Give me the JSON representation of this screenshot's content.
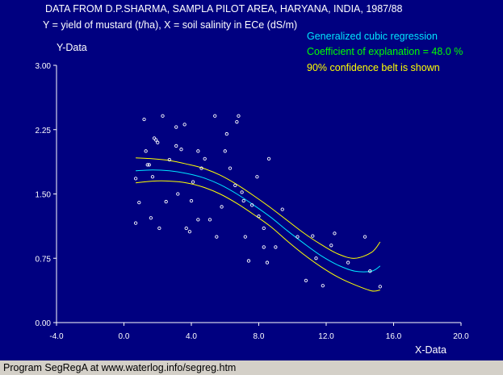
{
  "header": {
    "title": "DATA FROM D.P.SHARMA, SAMPLA PILOT AREA, HARYANA, INDIA, 1987/88",
    "subtitle": "Y = yield of mustard (t/ha), X = soil salinity in ECe (dS/m)"
  },
  "legend": {
    "line1": "Generalized cubic regression",
    "line2": "Coefficient of explanation = 48.0 %",
    "line3": "90% confidence belt is shown"
  },
  "footer": {
    "text": "Program SegRegA at www.waterlog.info/segreg.htm"
  },
  "colors": {
    "background": "#000080",
    "points": "#ffffff",
    "regression": "#00e5ff",
    "confidence": "#ffff00",
    "legend1": "#00e5ff",
    "legend2": "#00ff00",
    "legend3": "#ffff00",
    "axis": "#ffffff",
    "header": "#ffffff",
    "footer": "#000000"
  },
  "chart_data": {
    "type": "scatter",
    "title": "DATA FROM D.P.SHARMA, SAMPLA PILOT AREA, HARYANA, INDIA, 1987/88",
    "xlabel": "X-Data",
    "ylabel": "Y-Data",
    "xlim": [
      -4.0,
      20.0
    ],
    "ylim": [
      0.0,
      3.0
    ],
    "xticks": [
      "-4.0",
      "0.0",
      "4.0",
      "8.0",
      "12.0",
      "16.0",
      "20.0"
    ],
    "xtick_values": [
      -4,
      0,
      4,
      8,
      12,
      16,
      20
    ],
    "yticks": [
      "0.00",
      "0.75",
      "1.50",
      "2.25",
      "3.00"
    ],
    "ytick_values": [
      0,
      0.75,
      1.5,
      2.25,
      3.0
    ],
    "grid": false,
    "legend_position": "top-right",
    "series": [
      {
        "name": "data",
        "points": [
          [
            0.7,
            1.68
          ],
          [
            0.7,
            1.16
          ],
          [
            0.9,
            1.4
          ],
          [
            1.2,
            2.37
          ],
          [
            1.3,
            2.0
          ],
          [
            1.4,
            1.84
          ],
          [
            1.5,
            1.84
          ],
          [
            1.6,
            1.22
          ],
          [
            1.7,
            1.7
          ],
          [
            1.8,
            2.15
          ],
          [
            1.9,
            2.13
          ],
          [
            2.0,
            2.1
          ],
          [
            2.1,
            1.1
          ],
          [
            2.3,
            2.41
          ],
          [
            2.5,
            1.41
          ],
          [
            2.7,
            1.9
          ],
          [
            3.1,
            2.28
          ],
          [
            3.1,
            2.06
          ],
          [
            3.2,
            1.5
          ],
          [
            3.4,
            2.02
          ],
          [
            3.6,
            2.31
          ],
          [
            3.7,
            1.1
          ],
          [
            3.9,
            1.06
          ],
          [
            4.0,
            1.42
          ],
          [
            4.1,
            1.64
          ],
          [
            4.4,
            1.2
          ],
          [
            4.4,
            2.0
          ],
          [
            4.6,
            1.8
          ],
          [
            4.8,
            1.91
          ],
          [
            5.1,
            1.2
          ],
          [
            5.4,
            2.41
          ],
          [
            5.5,
            1.0
          ],
          [
            5.8,
            1.35
          ],
          [
            6.0,
            2.0
          ],
          [
            6.3,
            1.8
          ],
          [
            6.1,
            2.2
          ],
          [
            6.6,
            1.6
          ],
          [
            6.7,
            2.34
          ],
          [
            6.8,
            2.41
          ],
          [
            7.0,
            1.52
          ],
          [
            7.1,
            1.42
          ],
          [
            7.2,
            1.0
          ],
          [
            7.4,
            0.72
          ],
          [
            7.6,
            1.37
          ],
          [
            7.9,
            1.7
          ],
          [
            8.0,
            1.24
          ],
          [
            8.3,
            0.88
          ],
          [
            8.3,
            1.1
          ],
          [
            8.5,
            0.7
          ],
          [
            8.6,
            1.91
          ],
          [
            9.0,
            0.88
          ],
          [
            9.4,
            1.32
          ],
          [
            10.3,
            1.0
          ],
          [
            10.8,
            0.49
          ],
          [
            11.2,
            1.01
          ],
          [
            11.4,
            0.75
          ],
          [
            11.8,
            0.43
          ],
          [
            12.3,
            0.9
          ],
          [
            12.5,
            1.04
          ],
          [
            13.3,
            0.7
          ],
          [
            14.3,
            1.0
          ],
          [
            14.6,
            0.6
          ],
          [
            15.2,
            0.42
          ]
        ]
      },
      {
        "name": "regression",
        "x": [
          0.7,
          1.7,
          2.7,
          3.7,
          4.7,
          5.7,
          6.7,
          7.7,
          8.7,
          9.7,
          10.7,
          11.7,
          12.7,
          13.7,
          14.7,
          15.2
        ],
        "y": [
          1.77,
          1.78,
          1.77,
          1.74,
          1.69,
          1.61,
          1.5,
          1.37,
          1.23,
          1.07,
          0.92,
          0.78,
          0.67,
          0.6,
          0.6,
          0.66
        ]
      },
      {
        "name": "confidence-upper",
        "x": [
          0.7,
          1.7,
          2.7,
          3.7,
          4.7,
          5.7,
          6.7,
          7.7,
          8.7,
          9.7,
          10.7,
          11.7,
          12.7,
          13.7,
          14.7,
          15.2
        ],
        "y": [
          1.92,
          1.91,
          1.89,
          1.85,
          1.8,
          1.72,
          1.61,
          1.48,
          1.34,
          1.19,
          1.04,
          0.91,
          0.8,
          0.75,
          0.82,
          0.94
        ]
      },
      {
        "name": "confidence-lower",
        "x": [
          0.7,
          1.7,
          2.7,
          3.7,
          4.7,
          5.7,
          6.7,
          7.7,
          8.7,
          9.7,
          10.7,
          11.7,
          12.7,
          13.7,
          14.7,
          15.2
        ],
        "y": [
          1.63,
          1.65,
          1.65,
          1.63,
          1.58,
          1.5,
          1.39,
          1.26,
          1.12,
          0.95,
          0.79,
          0.65,
          0.53,
          0.44,
          0.37,
          0.38
        ]
      }
    ]
  }
}
